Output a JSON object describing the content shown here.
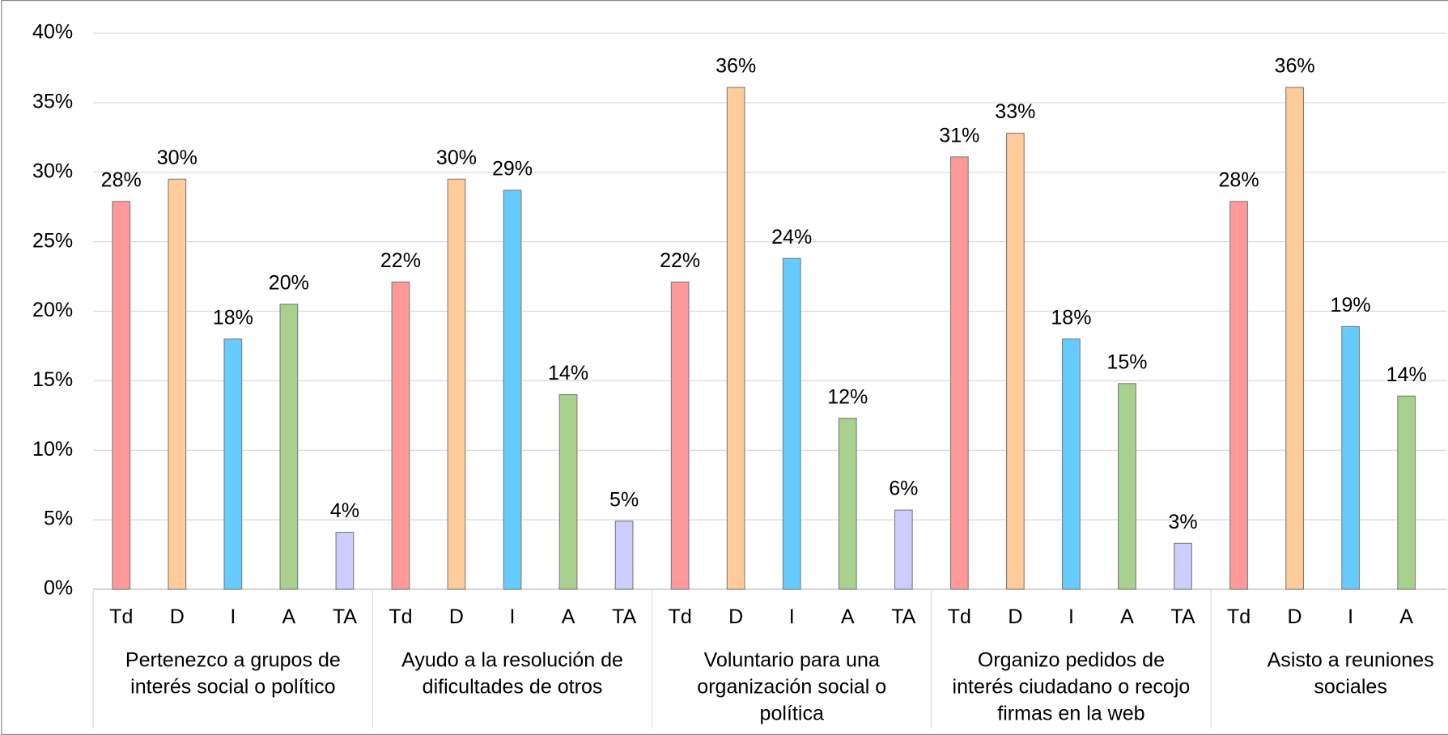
{
  "chart_data": {
    "type": "bar",
    "ylim": [
      0,
      40
    ],
    "yticks": [
      {
        "value": 0,
        "label": "0%"
      },
      {
        "value": 5,
        "label": "5%"
      },
      {
        "value": 10,
        "label": "10%"
      },
      {
        "value": 15,
        "label": "15%"
      },
      {
        "value": 20,
        "label": "20%"
      },
      {
        "value": 25,
        "label": "25%"
      },
      {
        "value": 30,
        "label": "30%"
      },
      {
        "value": 35,
        "label": "35%"
      },
      {
        "value": 40,
        "label": "40%"
      }
    ],
    "grid": true,
    "colors": [
      "#ff9999",
      "#ffcc99",
      "#66ccff",
      "#a9d18e",
      "#ccccff"
    ],
    "groups": [
      {
        "label_lines": [
          "Pertenezco a grupos de",
          "interés social o político"
        ],
        "subcategories": [
          "Td",
          "D",
          "I",
          "A",
          "TA"
        ],
        "values": [
          27.9,
          29.5,
          18.0,
          20.5,
          4.1
        ],
        "value_labels": [
          "28%",
          "30%",
          "18%",
          "20%",
          "4%"
        ]
      },
      {
        "label_lines": [
          "Ayudo a la resolución de",
          "dificultades de otros"
        ],
        "subcategories": [
          "Td",
          "D",
          "I",
          "A",
          "TA"
        ],
        "values": [
          22.1,
          29.5,
          28.7,
          14.0,
          4.9
        ],
        "value_labels": [
          "22%",
          "30%",
          "29%",
          "14%",
          "5%"
        ]
      },
      {
        "label_lines": [
          "Voluntario para una",
          "organización social o",
          "política"
        ],
        "subcategories": [
          "Td",
          "D",
          "I",
          "A",
          "TA"
        ],
        "values": [
          22.1,
          36.1,
          23.8,
          12.3,
          5.7
        ],
        "value_labels": [
          "22%",
          "36%",
          "24%",
          "12%",
          "6%"
        ]
      },
      {
        "label_lines": [
          "Organizo pedidos de",
          "interés ciudadano o recojo",
          "firmas en la web"
        ],
        "subcategories": [
          "Td",
          "D",
          "I",
          "A",
          "TA"
        ],
        "values": [
          31.1,
          32.8,
          18.0,
          14.8,
          3.3
        ],
        "value_labels": [
          "31%",
          "33%",
          "18%",
          "15%",
          "3%"
        ]
      },
      {
        "label_lines": [
          "Asisto a reuniones",
          "sociales"
        ],
        "subcategories": [
          "Td",
          "D",
          "I",
          "A"
        ],
        "values": [
          27.9,
          36.1,
          18.9,
          13.9
        ],
        "value_labels": [
          "28%",
          "36%",
          "19%",
          "14%"
        ]
      }
    ]
  }
}
